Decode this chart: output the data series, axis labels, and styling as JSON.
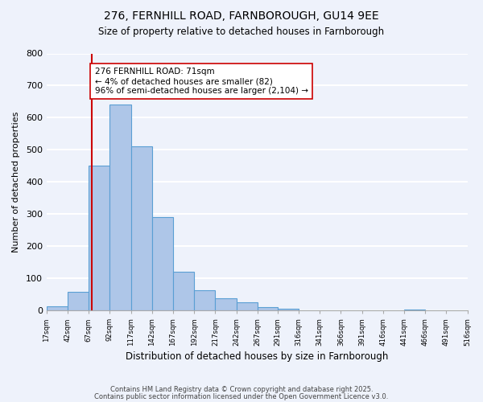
{
  "title1": "276, FERNHILL ROAD, FARNBOROUGH, GU14 9EE",
  "title2": "Size of property relative to detached houses in Farnborough",
  "xlabel": "Distribution of detached houses by size in Farnborough",
  "ylabel": "Number of detached properties",
  "bar_edges": [
    17,
    42,
    67,
    92,
    117,
    142,
    167,
    192,
    217,
    242,
    267,
    291,
    316,
    341,
    366,
    391,
    416,
    441,
    466,
    491,
    516
  ],
  "bar_heights": [
    12,
    57,
    450,
    640,
    510,
    290,
    120,
    62,
    37,
    25,
    10,
    5,
    0,
    0,
    0,
    0,
    0,
    2,
    0,
    0
  ],
  "bar_color": "#aec6e8",
  "bar_edgecolor": "#5a9fd4",
  "vline_x": 71,
  "vline_color": "#cc0000",
  "annotation_text": "276 FERNHILL ROAD: 71sqm\n← 4% of detached houses are smaller (82)\n96% of semi-detached houses are larger (2,104) →",
  "annotation_box_edgecolor": "#cc0000",
  "annotation_box_facecolor": "#ffffff",
  "ylim": [
    0,
    800
  ],
  "yticks": [
    0,
    100,
    200,
    300,
    400,
    500,
    600,
    700,
    800
  ],
  "tick_labels": [
    "17sqm",
    "42sqm",
    "67sqm",
    "92sqm",
    "117sqm",
    "142sqm",
    "167sqm",
    "192sqm",
    "217sqm",
    "242sqm",
    "267sqm",
    "291sqm",
    "316sqm",
    "341sqm",
    "366sqm",
    "391sqm",
    "416sqm",
    "441sqm",
    "466sqm",
    "491sqm",
    "516sqm"
  ],
  "background_color": "#eef2fb",
  "grid_color": "#ffffff",
  "footer1": "Contains HM Land Registry data © Crown copyright and database right 2025.",
  "footer2": "Contains public sector information licensed under the Open Government Licence v3.0."
}
